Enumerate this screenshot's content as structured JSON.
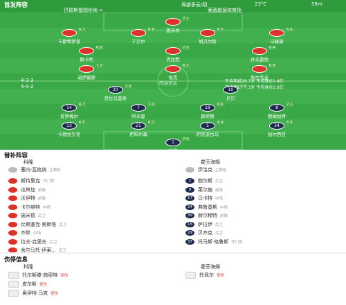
{
  "header": {
    "title": "首发阵容",
    "weather": "局部多云/阴",
    "temperature": "23°C",
    "wind": "58m",
    "team_info": "巴德斯堡图伦纳 >",
    "venue": "莱茵能源体育场"
  },
  "pitch": {
    "center_label": "阵容信息",
    "home_formation": "4-3-3",
    "away_formation": "4-4-2",
    "home_stats": "平均年龄26.7岁 平均身价2.4亿",
    "away_stats": "平均年龄25.3岁 平均身价2.6亿",
    "home_rows": [
      [
        {
          "name": "施沃尔",
          "rating": "7.1"
        }
      ],
      [
        {
          "name": "卡斯特罗普",
          "rating": "6.7"
        },
        {
          "name": "于贝尔",
          "rating": "6.8"
        },
        {
          "name": "胡贝尔斯",
          "rating": "6.5"
        },
        {
          "name": "马滕斯",
          "rating": "6.6"
        }
      ],
      [
        {
          "name": "斯卡利",
          "rating": "6.9"
        },
        {
          "name": "克拉默",
          "rating": "7.0"
        },
        {
          "name": "孙夫雷德",
          "rating": "6.4"
        }
      ],
      [
        {
          "name": "诺伊豪斯",
          "rating": "7.2"
        },
        {
          "name": "哈克",
          "rating": "6.3"
        },
        {
          "name": "埃尔韦迪",
          "rating": "6.8"
        }
      ]
    ],
    "away_rows": [
      [
        {
          "number": "20",
          "name": "克拉马里奇",
          "rating": "7.3"
        },
        {
          "number": "10",
          "name": "贝贝",
          "rating": "6.9"
        }
      ],
      [
        {
          "number": "14",
          "name": "普罗梅尔",
          "rating": "6.7"
        },
        {
          "number": "7",
          "name": "阿米里",
          "rating": "7.0"
        },
        {
          "number": "18",
          "name": "斯塔赫",
          "rating": "6.6"
        },
        {
          "number": "8",
          "name": "鲍姆加特",
          "rating": "7.1"
        }
      ],
      [
        {
          "number": "13",
          "name": "卡德拉贝克",
          "rating": "6.5"
        },
        {
          "number": "21",
          "name": "尼科尔森",
          "rating": "6.7"
        },
        {
          "number": "5",
          "name": "阿克波古马",
          "rating": "6.4"
        },
        {
          "number": "34",
          "name": "加尔西亚",
          "rating": "6.6"
        }
      ],
      [
        {
          "number": "1",
          "name": "鲍曼",
          "rating": "7.0"
        }
      ]
    ]
  },
  "subs": {
    "title": "替补阵容",
    "home_team": "科隆",
    "away_team": "霍芬海姆",
    "home_coach": {
      "name": "塞内·瓦格纳",
      "role": "主教练"
    },
    "away_coach": {
      "name": "伊洛克",
      "role": "主教练"
    },
    "home": [
      {
        "name": "斯特里克",
        "pos": "守门员"
      },
      {
        "name": "达林加",
        "pos": "前锋"
      },
      {
        "name": "沃伊特",
        "pos": "前锋"
      },
      {
        "name": "卡尔维特",
        "pos": "中场"
      },
      {
        "name": "施米德",
        "pos": "后卫"
      },
      {
        "name": "比斯塞克·奥斯塔",
        "pos": "后卫"
      },
      {
        "name": "齐默",
        "pos": "中场"
      },
      {
        "name": "拉夫·克里夫",
        "pos": "后卫"
      },
      {
        "name": "舍尔马托·伊莱...",
        "pos": "后卫"
      }
    ],
    "away": [
      {
        "number": "2",
        "name": "鲍尔斯",
        "pos": "后卫"
      },
      {
        "number": "9",
        "name": "莱尔施",
        "pos": "前锋"
      },
      {
        "number": "17",
        "name": "马卡特",
        "pos": "中场"
      },
      {
        "number": "24",
        "name": "弗鲁基斯",
        "pos": "中场"
      },
      {
        "number": "39",
        "name": "赫尔穆特",
        "pos": "前锋"
      },
      {
        "number": "15",
        "name": "萨拉伊",
        "pos": "后卫"
      },
      {
        "number": "29",
        "name": "贝齐克",
        "pos": "后卫"
      },
      {
        "number": "37",
        "name": "托马斯·格鲁斯",
        "pos": "守门员"
      }
    ]
  },
  "injuries": {
    "title": "伤停信息",
    "home_team": "科隆",
    "away_team": "霍芬海姆",
    "home": [
      {
        "name": "托尔斯滕·施密特",
        "note": "受伤"
      },
      {
        "name": "皮尔斯",
        "note": "受伤"
      },
      {
        "name": "奥伊特·马克",
        "note": "受伤"
      }
    ],
    "away": [
      {
        "name": "托佩尔",
        "note": "受伤"
      }
    ]
  }
}
